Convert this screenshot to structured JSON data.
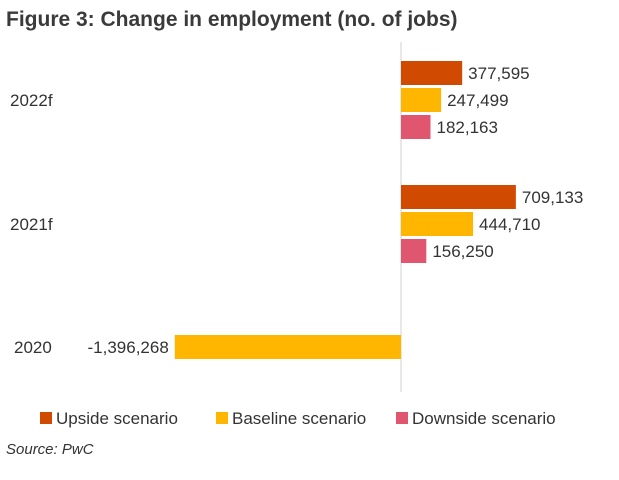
{
  "title": "Figure 3: Change in employment (no. of jobs)",
  "source": "Source: PwC",
  "chart_data": {
    "type": "bar",
    "orientation": "horizontal",
    "categories": [
      "2022f",
      "2021f",
      "2020"
    ],
    "series": [
      {
        "name": "Upside scenario",
        "color": "#d04a02",
        "values": [
          377595,
          709133,
          null
        ],
        "labels": [
          "377,595",
          "709,133",
          ""
        ]
      },
      {
        "name": "Baseline scenario",
        "color": "#ffb600",
        "values": [
          247499,
          444710,
          -1396268
        ],
        "labels": [
          "247,499",
          "444,710",
          "-1,396,268"
        ]
      },
      {
        "name": "Downside scenario",
        "color": "#e0566e",
        "values": [
          182163,
          156250,
          null
        ],
        "labels": [
          "182,163",
          "156,250",
          ""
        ]
      }
    ],
    "grid": false,
    "legend_position": "bottom"
  }
}
